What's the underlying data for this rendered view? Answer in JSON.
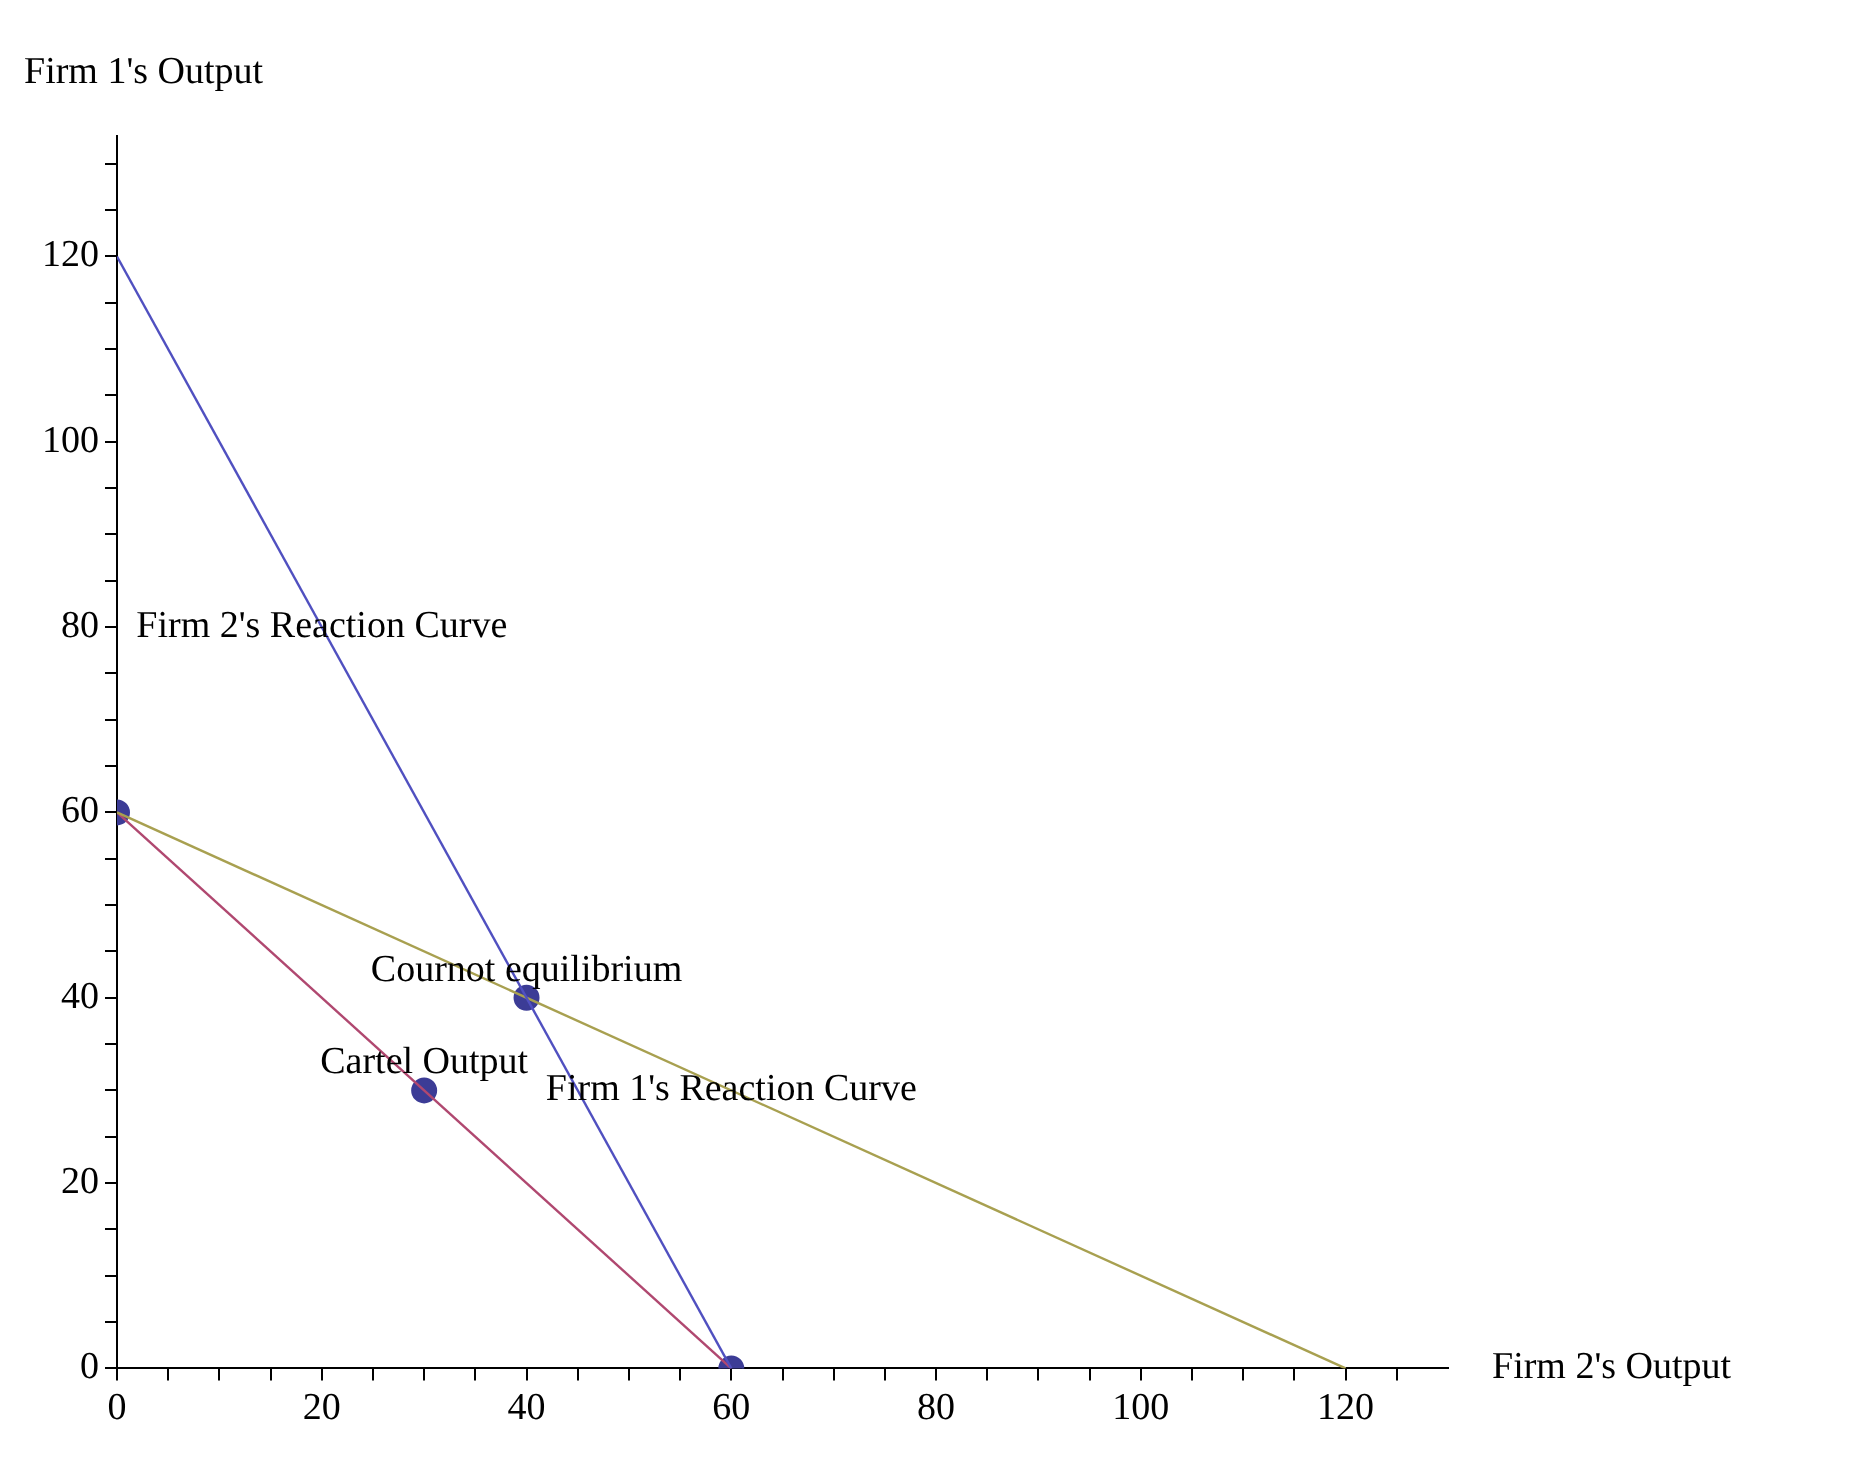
{
  "chart_data": {
    "type": "line",
    "xlabel": "Firm 2's Output",
    "ylabel": "Firm 1's Output",
    "xlim": [
      0,
      130
    ],
    "ylim": [
      0,
      133
    ],
    "xticks": [
      0,
      {
        "value": 5,
        "label": null
      },
      {
        "value": 10,
        "label": null
      },
      {
        "value": 15,
        "label": null
      },
      20,
      {
        "value": 25,
        "label": null
      },
      {
        "value": 30,
        "label": null
      },
      {
        "value": 35,
        "label": null
      },
      40,
      {
        "value": 45,
        "label": null
      },
      {
        "value": 50,
        "label": null
      },
      {
        "value": 55,
        "label": null
      },
      60,
      {
        "value": 65,
        "label": null
      },
      {
        "value": 70,
        "label": null
      },
      {
        "value": 75,
        "label": null
      },
      80,
      {
        "value": 85,
        "label": null
      },
      {
        "value": 90,
        "label": null
      },
      {
        "value": 95,
        "label": null
      },
      100,
      {
        "value": 105,
        "label": null
      },
      {
        "value": 110,
        "label": null
      },
      {
        "value": 115,
        "label": null
      },
      120,
      {
        "value": 125,
        "label": null
      }
    ],
    "yticks": [
      0,
      {
        "value": 5,
        "label": null
      },
      {
        "value": 10,
        "label": null
      },
      {
        "value": 15,
        "label": null
      },
      20,
      {
        "value": 25,
        "label": null
      },
      {
        "value": 30,
        "label": null
      },
      {
        "value": 35,
        "label": null
      },
      40,
      {
        "value": 45,
        "label": null
      },
      {
        "value": 50,
        "label": null
      },
      {
        "value": 55,
        "label": null
      },
      60,
      {
        "value": 65,
        "label": null
      },
      {
        "value": 70,
        "label": null
      },
      {
        "value": 75,
        "label": null
      },
      80,
      {
        "value": 85,
        "label": null
      },
      {
        "value": 90,
        "label": null
      },
      {
        "value": 95,
        "label": null
      },
      100,
      {
        "value": 105,
        "label": null
      },
      {
        "value": 110,
        "label": null
      },
      {
        "value": 115,
        "label": null
      },
      120,
      {
        "value": 125,
        "label": null
      },
      {
        "value": 130,
        "label": null
      }
    ],
    "series": [
      {
        "color": "#5050c0",
        "x": [
          0,
          60
        ],
        "values": [
          120,
          0
        ],
        "marker": "none"
      },
      {
        "color": "#a8a050",
        "x": [
          0,
          120
        ],
        "values": [
          60,
          0
        ],
        "marker": "none"
      },
      {
        "color": "#b04870",
        "x": [
          0,
          60
        ],
        "values": [
          60,
          0
        ],
        "marker": "none"
      },
      {
        "type": "scatter",
        "color": "#3c3c96",
        "x": [
          0,
          40,
          30,
          60
        ],
        "values": [
          60,
          40,
          30,
          0
        ],
        "marker": "circle"
      }
    ],
    "annotations": [
      {
        "text": "Firm 2's Reaction Curve",
        "x": 20,
        "y": 80
      },
      {
        "text": "Cournot equilibrium",
        "x": 40,
        "y": 40
      },
      {
        "text": "Cartel Output",
        "x": 30,
        "y": 30
      },
      {
        "text": "Firm 1's Reaction Curve",
        "x": 60,
        "y": 30
      }
    ],
    "grid": false,
    "legend": false
  }
}
